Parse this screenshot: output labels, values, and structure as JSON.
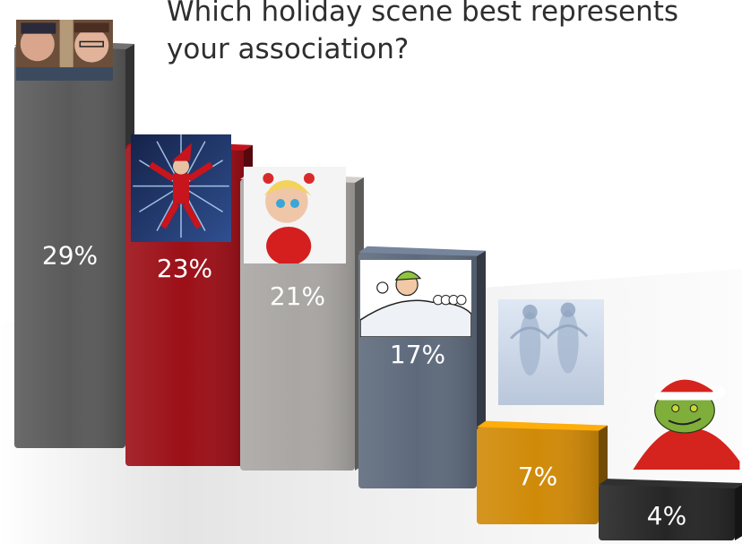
{
  "title_lines": [
    "Which holiday scene best represents",
    "your association?"
  ],
  "colors": {
    "bar_palette": [
      "#5a5a5a",
      "#9c0f17",
      "#a9a6a3",
      "#5e6a7c",
      "#d08a08",
      "#262626"
    ]
  },
  "chart_data": {
    "type": "bar",
    "title": "Which holiday scene best represents your association?",
    "categories": [
      "",
      "",
      "",
      "",
      "",
      ""
    ],
    "values": [
      29,
      23,
      21,
      17,
      7,
      4
    ],
    "value_labels": [
      "29%",
      "23%",
      "21%",
      "17%",
      "7%",
      "4%"
    ],
    "unit": "%",
    "ylim": [
      0,
      31
    ],
    "grid": false,
    "legend": "none",
    "bar_images": [
      "scene-photo-two-kids",
      "scene-electric-santa",
      "scene-cartoon-girl",
      "scene-snowball-kid",
      "scene-snow-angels",
      "scene-grinch"
    ]
  }
}
